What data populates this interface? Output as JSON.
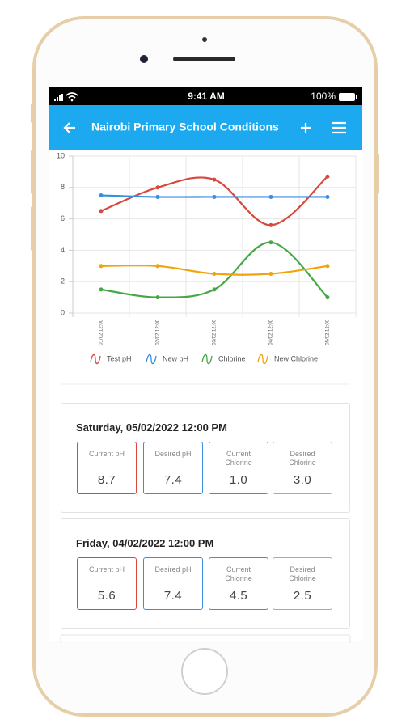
{
  "status_bar": {
    "time": "9:41 AM",
    "battery": "100%"
  },
  "app_bar": {
    "title": "Nairobi Primary School Conditions"
  },
  "chart_data": {
    "type": "line",
    "smooth": true,
    "grid": true,
    "legend": "bottom",
    "categories": [
      "01/02 12:00",
      "02/02 12:00",
      "03/02 12:00",
      "04/02 12:00",
      "05/02 12:00"
    ],
    "series": [
      {
        "name": "Test pH",
        "color": "#d6493c",
        "values": [
          6.5,
          8,
          8.5,
          5.6,
          8.7
        ]
      },
      {
        "name": "New pH",
        "color": "#3a8ee0",
        "values": [
          7.5,
          7.4,
          7.4,
          7.4,
          7.4
        ]
      },
      {
        "name": "Chlorine",
        "color": "#45a845",
        "values": [
          1.5,
          1,
          1.5,
          4.5,
          1.0
        ]
      },
      {
        "name": "New Chlorine",
        "color": "#f0a30a",
        "values": [
          3,
          3,
          2.5,
          2.5,
          3.0
        ]
      }
    ],
    "ylim": [
      0,
      10
    ],
    "yticks": [
      0,
      2,
      4,
      6,
      8,
      10
    ]
  },
  "readings": [
    {
      "heading": "Saturday, 05/02/2022 12:00 PM",
      "tiles": [
        {
          "label": "Current pH",
          "value": "8.7"
        },
        {
          "label": "Desired pH",
          "value": "7.4"
        },
        {
          "label": "Current Chlorine",
          "value": "1.0"
        },
        {
          "label": "Desired Chlorine",
          "value": "3.0"
        }
      ]
    },
    {
      "heading": "Friday, 04/02/2022 12:00 PM",
      "tiles": [
        {
          "label": "Current pH",
          "value": "5.6"
        },
        {
          "label": "Desired pH",
          "value": "7.4"
        },
        {
          "label": "Current Chlorine",
          "value": "4.5"
        },
        {
          "label": "Desired Chlorine",
          "value": "2.5"
        }
      ]
    }
  ]
}
